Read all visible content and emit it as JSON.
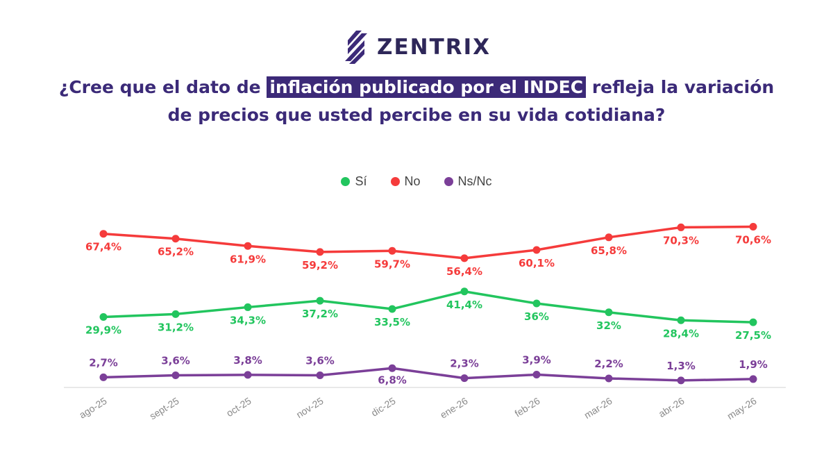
{
  "brand": {
    "name": "ZENTRIX"
  },
  "question": {
    "before": "¿Cree que el dato de ",
    "highlight": "inflación publicado por el INDEC",
    "after_line1": " refleja la variación",
    "line2": "de precios que usted percibe en su vida cotidiana?"
  },
  "colors": {
    "si": "#22c55e",
    "no": "#f53b3b",
    "nsnc": "#7b3f98",
    "highlight_bg": "#3c2a78",
    "title": "#3b2a78"
  },
  "chart_data": {
    "type": "line",
    "categories": [
      "ago-25",
      "sept-25",
      "oct-25",
      "nov-25",
      "dic-25",
      "ene-26",
      "feb-26",
      "mar-26",
      "abr-26",
      "may-26"
    ],
    "series": [
      {
        "name": "Sí",
        "values": [
          29.9,
          31.2,
          34.3,
          37.2,
          33.5,
          41.4,
          36,
          32,
          28.4,
          27.5
        ],
        "labels": [
          "29,9%",
          "31,2%",
          "34,3%",
          "37,2%",
          "33,5%",
          "41,4%",
          "36%",
          "32%",
          "28,4%",
          "27,5%"
        ]
      },
      {
        "name": "No",
        "values": [
          67.4,
          65.2,
          61.9,
          59.2,
          59.7,
          56.4,
          60.1,
          65.8,
          70.3,
          70.6
        ],
        "labels": [
          "67,4%",
          "65,2%",
          "61,9%",
          "59,2%",
          "59,7%",
          "56,4%",
          "60,1%",
          "65,8%",
          "70,3%",
          "70,6%"
        ]
      },
      {
        "name": "Ns/Nc",
        "values": [
          2.7,
          3.6,
          3.8,
          3.6,
          6.8,
          2.3,
          3.9,
          2.2,
          1.3,
          1.9
        ],
        "labels": [
          "2,7%",
          "3,6%",
          "3,8%",
          "3,6%",
          "6,8%",
          "2,3%",
          "3,9%",
          "2,2%",
          "1,3%",
          "1,9%"
        ]
      }
    ],
    "ylim": [
      0,
      72
    ],
    "grid": false,
    "legend_placement": "top-center"
  }
}
